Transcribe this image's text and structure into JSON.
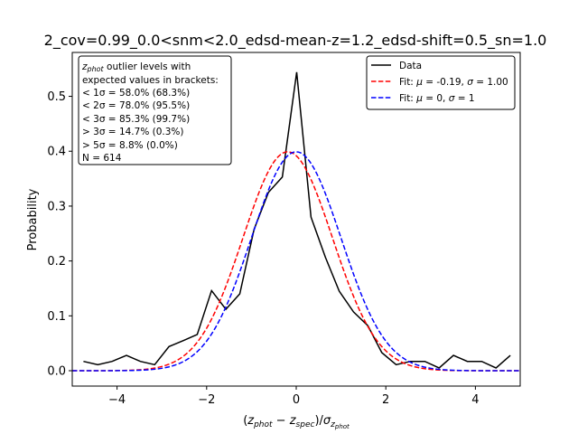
{
  "chart_data": {
    "type": "line",
    "title": "2_cov=0.99_0.0<snm<2.0_edsd-mean-z=1.2_edsd-shift=0.5_sn=1.0",
    "ylabel": "Probability",
    "xlabel_parts": {
      "open": "(",
      "z1": "z",
      "sub1": "phot",
      "minus": " − ",
      "z2": "z",
      "sub2": "spec",
      "close": ")/",
      "sigma": "σ",
      "sub3": "z",
      "subsub3": "phot"
    },
    "xlim": [
      -5,
      5
    ],
    "ylim": [
      -0.028,
      0.58
    ],
    "xticks": [
      -4,
      -2,
      0,
      2,
      4
    ],
    "yticks": [
      0.0,
      0.1,
      0.2,
      0.3,
      0.4,
      0.5
    ],
    "xtick_labels": [
      "−4",
      "−2",
      "0",
      "2",
      "4"
    ],
    "ytick_labels": [
      "0.0",
      "0.1",
      "0.2",
      "0.3",
      "0.4",
      "0.5"
    ],
    "grid": false,
    "legend_position": "upper-right",
    "series": [
      {
        "name": "Data",
        "color": "#000000",
        "style": "solid",
        "x": [
          -4.75,
          -4.43,
          -4.11,
          -3.79,
          -3.48,
          -3.16,
          -2.84,
          -2.52,
          -2.21,
          -1.89,
          -1.57,
          -1.26,
          -0.94,
          -0.62,
          -0.31,
          0.01,
          0.33,
          0.65,
          0.96,
          1.28,
          1.6,
          1.91,
          2.23,
          2.55,
          2.87,
          3.19,
          3.51,
          3.82,
          4.14,
          4.46,
          4.78
        ],
        "y": [
          0.017,
          0.011,
          0.017,
          0.028,
          0.017,
          0.011,
          0.044,
          0.055,
          0.066,
          0.146,
          0.112,
          0.14,
          0.258,
          0.325,
          0.353,
          0.544,
          0.28,
          0.207,
          0.145,
          0.107,
          0.082,
          0.033,
          0.011,
          0.017,
          0.017,
          0.005,
          0.028,
          0.017,
          0.017,
          0.005,
          0.028
        ]
      },
      {
        "name": "Fit: μ=-0.19, σ=1.00",
        "color": "#ff0000",
        "style": "dashed",
        "function": "gaussian",
        "mu": -0.19,
        "sigma": 1.0
      },
      {
        "name": "Fit: μ=0, σ=1",
        "color": "#0000ff",
        "style": "dashed",
        "function": "gaussian",
        "mu": 0,
        "sigma": 1
      }
    ],
    "legend": {
      "data": "Data",
      "fit_red_prefix": "Fit: ",
      "fit_red_mu": "μ",
      "fit_red_mid": " = -0.19, ",
      "fit_red_sigma": "σ",
      "fit_red_end": " = 1.00",
      "fit_blue_prefix": "Fit: ",
      "fit_blue_mu": "μ",
      "fit_blue_mid": " = 0, ",
      "fit_blue_sigma": "σ",
      "fit_blue_end": " = 1"
    },
    "annotation": {
      "head_z": "z",
      "head_sub": "phot",
      "head_rest": " outlier levels with",
      "lines": [
        " expected values in brackets:",
        "< 1σ = 58.0% (68.3%)",
        "< 2σ = 78.0% (95.5%)",
        "< 3σ = 85.3% (99.7%)",
        "> 3σ = 14.7% (0.3%)",
        "> 5σ = 8.8% (0.0%)",
        "N = 614"
      ]
    }
  }
}
